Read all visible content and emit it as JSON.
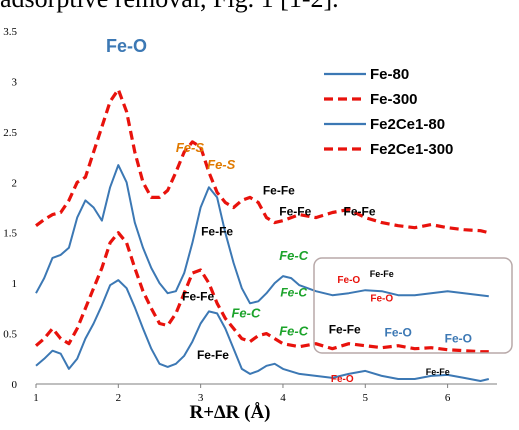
{
  "caption": "adsorptive removal, Fig. 1 [1-2].",
  "colors": {
    "blue": "#3C78B4",
    "red": "#E8120C",
    "orange": "#E07A00",
    "green": "#1BA32A",
    "box": "#B8A9A9"
  },
  "chart_data": {
    "type": "line",
    "xlabel": "R+∆R (Å)",
    "ylabel": "",
    "xlim": [
      1,
      6.6
    ],
    "ylim": [
      0,
      3.5
    ],
    "x_ticks": [
      1,
      2,
      3,
      4,
      5,
      6
    ],
    "y_ticks": [
      0,
      0.5,
      1,
      1.5,
      2,
      2.5,
      3,
      3.5
    ],
    "y_tick_labels": [
      "0",
      "0.5",
      "1",
      "1.5",
      "2",
      "2.5",
      "3",
      "3.5"
    ],
    "grid": false,
    "legend_position": "top-right",
    "series": [
      {
        "name": "Fe-80",
        "color": "#3C78B4",
        "dash": false,
        "points": [
          [
            1,
            0.18
          ],
          [
            1.1,
            0.25
          ],
          [
            1.2,
            0.33
          ],
          [
            1.3,
            0.3
          ],
          [
            1.4,
            0.15
          ],
          [
            1.5,
            0.25
          ],
          [
            1.6,
            0.45
          ],
          [
            1.7,
            0.6
          ],
          [
            1.8,
            0.78
          ],
          [
            1.9,
            0.98
          ],
          [
            2.0,
            1.03
          ],
          [
            2.1,
            0.95
          ],
          [
            2.2,
            0.76
          ],
          [
            2.3,
            0.55
          ],
          [
            2.4,
            0.35
          ],
          [
            2.5,
            0.2
          ],
          [
            2.6,
            0.17
          ],
          [
            2.7,
            0.2
          ],
          [
            2.8,
            0.28
          ],
          [
            2.9,
            0.42
          ],
          [
            3.0,
            0.6
          ],
          [
            3.1,
            0.72
          ],
          [
            3.2,
            0.7
          ],
          [
            3.3,
            0.55
          ],
          [
            3.4,
            0.35
          ],
          [
            3.5,
            0.15
          ],
          [
            3.6,
            0.1
          ],
          [
            3.7,
            0.13
          ],
          [
            3.8,
            0.18
          ],
          [
            3.9,
            0.2
          ],
          [
            4.0,
            0.15
          ],
          [
            4.2,
            0.1
          ],
          [
            4.4,
            0.08
          ],
          [
            4.6,
            0.06
          ],
          [
            4.8,
            0.1
          ],
          [
            5.0,
            0.13
          ],
          [
            5.2,
            0.08
          ],
          [
            5.4,
            0.05
          ],
          [
            5.6,
            0.05
          ],
          [
            5.8,
            0.08
          ],
          [
            6.0,
            0.09
          ],
          [
            6.2,
            0.06
          ],
          [
            6.4,
            0.03
          ],
          [
            6.5,
            0.05
          ]
        ]
      },
      {
        "name": "Fe-300",
        "color": "#E8120C",
        "dash": true,
        "points": [
          [
            1,
            0.38
          ],
          [
            1.1,
            0.45
          ],
          [
            1.2,
            0.55
          ],
          [
            1.3,
            0.45
          ],
          [
            1.4,
            0.4
          ],
          [
            1.5,
            0.55
          ],
          [
            1.6,
            0.75
          ],
          [
            1.7,
            0.95
          ],
          [
            1.8,
            1.15
          ],
          [
            1.9,
            1.4
          ],
          [
            2.0,
            1.5
          ],
          [
            2.1,
            1.4
          ],
          [
            2.2,
            1.15
          ],
          [
            2.3,
            0.92
          ],
          [
            2.4,
            0.75
          ],
          [
            2.5,
            0.6
          ],
          [
            2.6,
            0.58
          ],
          [
            2.7,
            0.7
          ],
          [
            2.8,
            0.9
          ],
          [
            2.9,
            1.1
          ],
          [
            3.0,
            1.13
          ],
          [
            3.1,
            1.0
          ],
          [
            3.2,
            0.8
          ],
          [
            3.3,
            0.65
          ],
          [
            3.4,
            0.55
          ],
          [
            3.5,
            0.45
          ],
          [
            3.6,
            0.42
          ],
          [
            3.7,
            0.48
          ],
          [
            3.8,
            0.5
          ],
          [
            3.9,
            0.45
          ],
          [
            4.0,
            0.4
          ],
          [
            4.2,
            0.37
          ],
          [
            4.4,
            0.4
          ],
          [
            4.6,
            0.35
          ],
          [
            4.8,
            0.4
          ],
          [
            5.0,
            0.38
          ],
          [
            5.2,
            0.36
          ],
          [
            5.4,
            0.38
          ],
          [
            5.6,
            0.35
          ],
          [
            5.8,
            0.36
          ],
          [
            6.0,
            0.34
          ],
          [
            6.2,
            0.33
          ],
          [
            6.4,
            0.32
          ],
          [
            6.5,
            0.32
          ]
        ]
      },
      {
        "name": "Fe2Ce1-80",
        "color": "#3C78B4",
        "dash": false,
        "points": [
          [
            1,
            0.9
          ],
          [
            1.1,
            1.05
          ],
          [
            1.2,
            1.25
          ],
          [
            1.3,
            1.28
          ],
          [
            1.4,
            1.35
          ],
          [
            1.5,
            1.65
          ],
          [
            1.6,
            1.82
          ],
          [
            1.7,
            1.75
          ],
          [
            1.8,
            1.62
          ],
          [
            1.9,
            1.95
          ],
          [
            2.0,
            2.17
          ],
          [
            2.1,
            2.0
          ],
          [
            2.2,
            1.6
          ],
          [
            2.3,
            1.35
          ],
          [
            2.4,
            1.15
          ],
          [
            2.5,
            1.0
          ],
          [
            2.6,
            0.9
          ],
          [
            2.7,
            0.92
          ],
          [
            2.8,
            1.1
          ],
          [
            2.9,
            1.4
          ],
          [
            3.0,
            1.75
          ],
          [
            3.1,
            1.95
          ],
          [
            3.2,
            1.85
          ],
          [
            3.3,
            1.5
          ],
          [
            3.4,
            1.2
          ],
          [
            3.5,
            0.95
          ],
          [
            3.6,
            0.8
          ],
          [
            3.7,
            0.82
          ],
          [
            3.8,
            0.9
          ],
          [
            3.9,
            1.0
          ],
          [
            4.0,
            1.07
          ],
          [
            4.1,
            1.05
          ],
          [
            4.2,
            0.98
          ],
          [
            4.3,
            0.95
          ],
          [
            4.4,
            0.92
          ],
          [
            4.6,
            0.88
          ],
          [
            4.8,
            0.9
          ],
          [
            5.0,
            0.93
          ],
          [
            5.2,
            0.92
          ],
          [
            5.4,
            0.88
          ],
          [
            5.6,
            0.88
          ],
          [
            5.8,
            0.9
          ],
          [
            6.0,
            0.92
          ],
          [
            6.2,
            0.9
          ],
          [
            6.4,
            0.88
          ],
          [
            6.5,
            0.87
          ]
        ]
      },
      {
        "name": "Fe2Ce1-300",
        "color": "#E8120C",
        "dash": true,
        "points": [
          [
            1,
            1.57
          ],
          [
            1.1,
            1.63
          ],
          [
            1.2,
            1.68
          ],
          [
            1.3,
            1.7
          ],
          [
            1.4,
            1.82
          ],
          [
            1.5,
            2.0
          ],
          [
            1.6,
            2.05
          ],
          [
            1.7,
            2.3
          ],
          [
            1.8,
            2.55
          ],
          [
            1.9,
            2.8
          ],
          [
            2.0,
            2.92
          ],
          [
            2.1,
            2.7
          ],
          [
            2.2,
            2.3
          ],
          [
            2.3,
            2.0
          ],
          [
            2.4,
            1.85
          ],
          [
            2.5,
            1.85
          ],
          [
            2.6,
            1.92
          ],
          [
            2.7,
            2.1
          ],
          [
            2.8,
            2.3
          ],
          [
            2.9,
            2.4
          ],
          [
            3.0,
            2.35
          ],
          [
            3.1,
            2.1
          ],
          [
            3.2,
            1.9
          ],
          [
            3.3,
            1.8
          ],
          [
            3.4,
            1.75
          ],
          [
            3.5,
            1.82
          ],
          [
            3.6,
            1.85
          ],
          [
            3.7,
            1.8
          ],
          [
            3.8,
            1.65
          ],
          [
            3.9,
            1.6
          ],
          [
            4.0,
            1.62
          ],
          [
            4.2,
            1.68
          ],
          [
            4.4,
            1.65
          ],
          [
            4.6,
            1.7
          ],
          [
            4.8,
            1.73
          ],
          [
            5.0,
            1.65
          ],
          [
            5.2,
            1.6
          ],
          [
            5.4,
            1.57
          ],
          [
            5.6,
            1.55
          ],
          [
            5.8,
            1.58
          ],
          [
            6.0,
            1.55
          ],
          [
            6.2,
            1.53
          ],
          [
            6.4,
            1.52
          ],
          [
            6.5,
            1.5
          ]
        ]
      }
    ],
    "annotations": [
      {
        "text": "Fe-O",
        "x": 2.1,
        "y": 3.29,
        "color": "#3C78B4",
        "size": 18,
        "style": "bold"
      },
      {
        "text": "Fe-S",
        "x": 2.87,
        "y": 2.3,
        "color": "#E07A00",
        "size": 13,
        "style": "italic"
      },
      {
        "text": "Fe-S",
        "x": 3.25,
        "y": 2.13,
        "color": "#E07A00",
        "size": 13,
        "style": "italic"
      },
      {
        "text": "Fe-Fe",
        "x": 3.95,
        "y": 1.88,
        "color": "#000000",
        "size": 12,
        "style": "bold"
      },
      {
        "text": "Fe-Fe",
        "x": 4.15,
        "y": 1.67,
        "color": "#000000",
        "size": 12,
        "style": "bold"
      },
      {
        "text": "Fe-Fe",
        "x": 4.93,
        "y": 1.67,
        "color": "#000000",
        "size": 12,
        "style": "bold"
      },
      {
        "text": "Fe-Fe",
        "x": 3.2,
        "y": 1.47,
        "color": "#000000",
        "size": 12,
        "style": "bold"
      },
      {
        "text": "Fe-C",
        "x": 4.13,
        "y": 1.23,
        "color": "#1BA32A",
        "size": 13,
        "style": "italic"
      },
      {
        "text": "Fe-C",
        "x": 4.13,
        "y": 0.87,
        "color": "#1BA32A",
        "size": 12,
        "style": "italic"
      },
      {
        "text": "Fe-O",
        "x": 4.8,
        "y": 1.0,
        "color": "#E8120C",
        "size": 10,
        "style": "bold"
      },
      {
        "text": "Fe-Fe",
        "x": 5.2,
        "y": 1.06,
        "color": "#000000",
        "size": 9,
        "style": "bold"
      },
      {
        "text": "Fe-O",
        "x": 5.2,
        "y": 0.82,
        "color": "#E8120C",
        "size": 10,
        "style": "bold"
      },
      {
        "text": "Fe-Fe",
        "x": 2.97,
        "y": 0.83,
        "color": "#000000",
        "size": 12,
        "style": "bold"
      },
      {
        "text": "Fe-C",
        "x": 3.55,
        "y": 0.66,
        "color": "#1BA32A",
        "size": 13,
        "style": "italic"
      },
      {
        "text": "Fe-C",
        "x": 4.13,
        "y": 0.48,
        "color": "#1BA32A",
        "size": 13,
        "style": "italic"
      },
      {
        "text": "Fe-Fe",
        "x": 4.75,
        "y": 0.5,
        "color": "#000000",
        "size": 12,
        "style": "bold"
      },
      {
        "text": "Fe-O",
        "x": 5.4,
        "y": 0.47,
        "color": "#3C78B4",
        "size": 12,
        "style": "bold"
      },
      {
        "text": "Fe-O",
        "x": 6.13,
        "y": 0.41,
        "color": "#3C78B4",
        "size": 12,
        "style": "bold"
      },
      {
        "text": "Fe-Fe",
        "x": 3.15,
        "y": 0.25,
        "color": "#000000",
        "size": 12,
        "style": "bold"
      },
      {
        "text": "Fe-O",
        "x": 4.72,
        "y": 0.02,
        "color": "#E8120C",
        "size": 10,
        "style": "bold"
      },
      {
        "text": "Fe-Fe",
        "x": 5.88,
        "y": 0.09,
        "color": "#000000",
        "size": 9,
        "style": "bold"
      }
    ]
  }
}
